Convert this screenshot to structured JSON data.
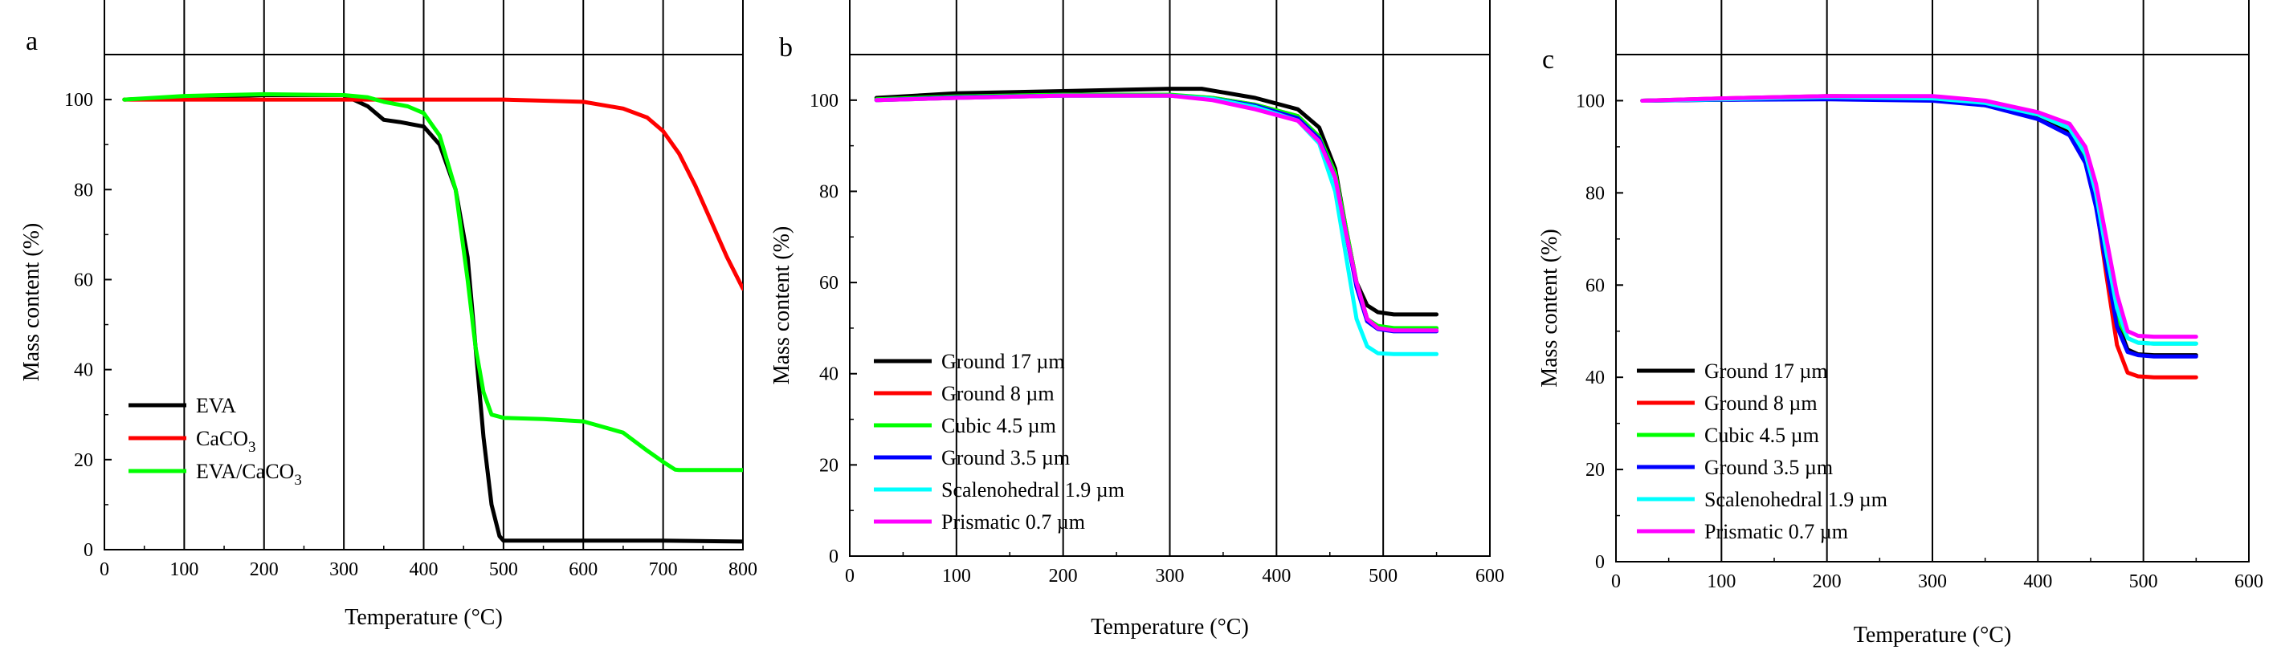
{
  "chart_data": [
    {
      "type": "line",
      "panel": "a",
      "xlabel": "Temperature (°C)",
      "ylabel": "Mass content (%)",
      "xlim": [
        0,
        800
      ],
      "ylim": [
        0,
        110
      ],
      "xticks": [
        0,
        100,
        200,
        300,
        400,
        500,
        600,
        700,
        800
      ],
      "yticks": [
        0,
        20,
        40,
        60,
        80,
        100
      ],
      "legend_position": "bottom-left",
      "series": [
        {
          "name": "EVA",
          "label_main": "EVA",
          "label_sub": "",
          "label_tail": "",
          "color": "#000000",
          "x": [
            25,
            100,
            200,
            300,
            330,
            350,
            370,
            400,
            420,
            440,
            455,
            465,
            475,
            485,
            495,
            500,
            550,
            600,
            700,
            800
          ],
          "y": [
            100,
            100.5,
            101,
            101,
            98.5,
            95.5,
            95,
            94,
            90,
            80,
            65,
            45,
            25,
            10,
            3,
            2,
            2,
            2,
            2,
            1.8
          ]
        },
        {
          "name": "CaCO3",
          "label_main": "CaCO",
          "label_sub": "3",
          "label_tail": "",
          "color": "#ff0000",
          "x": [
            25,
            100,
            300,
            500,
            600,
            650,
            680,
            700,
            720,
            740,
            760,
            780,
            800
          ],
          "y": [
            100,
            100,
            100,
            100,
            99.5,
            98,
            96,
            93,
            88,
            81,
            73,
            65,
            58
          ]
        },
        {
          "name": "EVA/CaCO3",
          "label_main": "EVA/CaCO",
          "label_sub": "3",
          "label_tail": "",
          "color": "#00ff00",
          "x": [
            25,
            100,
            200,
            300,
            330,
            350,
            380,
            400,
            420,
            440,
            455,
            465,
            475,
            485,
            500,
            550,
            600,
            650,
            680,
            700,
            715,
            720,
            800
          ],
          "y": [
            100,
            100.8,
            101.2,
            101,
            100.5,
            99.5,
            98.5,
            97,
            92,
            80,
            60,
            45,
            35,
            30,
            29.3,
            29,
            28.5,
            26,
            22,
            19.5,
            17.8,
            17.7,
            17.7
          ]
        }
      ]
    },
    {
      "type": "line",
      "panel": "b",
      "xlabel": "Temperature (°C)",
      "ylabel": "Mass content (%)",
      "xlim": [
        0,
        600
      ],
      "ylim": [
        0,
        110
      ],
      "xticks": [
        0,
        100,
        200,
        300,
        400,
        500,
        600
      ],
      "yticks": [
        0,
        20,
        40,
        60,
        80,
        100
      ],
      "legend_position": "bottom-left",
      "series": [
        {
          "name": "Ground 17 µm",
          "label_main": "Ground 17 µm",
          "label_sub": "",
          "label_tail": "",
          "color": "#000000",
          "x": [
            25,
            100,
            200,
            300,
            330,
            380,
            420,
            440,
            455,
            465,
            475,
            485,
            495,
            510,
            550
          ],
          "y": [
            100.5,
            101.5,
            102,
            102.5,
            102.5,
            100.5,
            98,
            94,
            85,
            72,
            60,
            55,
            53.5,
            53,
            53
          ]
        },
        {
          "name": "Ground 8 µm",
          "label_main": "Ground 8 µm",
          "label_sub": "",
          "label_tail": "",
          "color": "#ff0000",
          "x": [
            25,
            100,
            200,
            300,
            340,
            380,
            420,
            440,
            455,
            465,
            475,
            485,
            495,
            510,
            550
          ],
          "y": [
            100,
            100.5,
            101,
            101,
            100.5,
            99,
            96.5,
            92,
            84,
            72,
            60,
            52,
            50,
            49.5,
            49.5
          ]
        },
        {
          "name": "Cubic 4.5 µm",
          "label_main": "Cubic 4.5 µm",
          "label_sub": "",
          "label_tail": "",
          "color": "#00ff00",
          "x": [
            25,
            100,
            200,
            300,
            340,
            380,
            420,
            440,
            455,
            465,
            475,
            485,
            495,
            510,
            550
          ],
          "y": [
            100.2,
            100.8,
            101.2,
            101.2,
            100.5,
            99,
            96.5,
            92,
            84,
            72,
            60,
            52,
            50.5,
            50,
            50
          ]
        },
        {
          "name": "Ground 3.5 µm",
          "label_main": "Ground 3.5 µm",
          "label_sub": "",
          "label_tail": "",
          "color": "#0000ff",
          "x": [
            25,
            100,
            200,
            300,
            340,
            380,
            420,
            440,
            455,
            465,
            475,
            485,
            495,
            510,
            550
          ],
          "y": [
            100,
            100.6,
            101,
            101,
            100.3,
            98.8,
            96,
            91.5,
            83,
            71,
            59,
            51.5,
            49.8,
            49.3,
            49.3
          ]
        },
        {
          "name": "Scalenohedral 1.9 µm",
          "label_main": "Scalenohedral 1.9 µm",
          "label_sub": "",
          "label_tail": "",
          "color": "#00ffff",
          "x": [
            25,
            100,
            200,
            300,
            340,
            380,
            420,
            440,
            455,
            465,
            475,
            485,
            495,
            510,
            550
          ],
          "y": [
            100,
            100.5,
            101,
            101,
            100.3,
            98.5,
            95.5,
            90.5,
            80,
            66,
            52,
            46,
            44.5,
            44.3,
            44.3
          ]
        },
        {
          "name": "Prismatic 0.7 µm",
          "label_main": "Prismatic 0.7 µm",
          "label_sub": "",
          "label_tail": "",
          "color": "#ff00ff",
          "x": [
            25,
            100,
            200,
            300,
            340,
            380,
            420,
            440,
            455,
            465,
            475,
            485,
            495,
            510,
            550
          ],
          "y": [
            100,
            100.5,
            101,
            101,
            100,
            98,
            95.5,
            91,
            83,
            71,
            60,
            52,
            50,
            49.5,
            49.5
          ]
        }
      ]
    },
    {
      "type": "line",
      "panel": "c",
      "xlabel": "Temperature (°C)",
      "ylabel": "Mass content (%)",
      "xlim": [
        0,
        600
      ],
      "ylim": [
        0,
        110
      ],
      "xticks": [
        0,
        100,
        200,
        300,
        400,
        500,
        600
      ],
      "yticks": [
        0,
        20,
        40,
        60,
        80,
        100
      ],
      "legend_position": "bottom-left",
      "series": [
        {
          "name": "Ground 17 µm",
          "label_main": "Ground 17 µm",
          "label_sub": "",
          "label_tail": "",
          "color": "#000000",
          "x": [
            25,
            100,
            200,
            300,
            350,
            400,
            430,
            445,
            455,
            465,
            475,
            485,
            495,
            510,
            550
          ],
          "y": [
            100,
            100.2,
            100.5,
            100.2,
            99,
            96.5,
            93,
            87,
            78,
            65,
            52,
            46,
            45,
            44.8,
            44.8
          ]
        },
        {
          "name": "Ground 8 µm",
          "label_main": "Ground 8 µm",
          "label_sub": "",
          "label_tail": "",
          "color": "#ff0000",
          "x": [
            25,
            100,
            200,
            300,
            350,
            400,
            430,
            445,
            455,
            465,
            475,
            485,
            495,
            510,
            550
          ],
          "y": [
            100,
            100.5,
            101,
            100.8,
            99.5,
            97,
            94,
            88,
            78,
            62,
            47,
            41,
            40.2,
            40,
            40
          ]
        },
        {
          "name": "Cubic 4.5 µm",
          "label_main": "Cubic 4.5 µm",
          "label_sub": "",
          "label_tail": "",
          "color": "#00ff00",
          "x": [
            25,
            100,
            200,
            300,
            350,
            400,
            430,
            445,
            455,
            465,
            475,
            485,
            495,
            510,
            550
          ],
          "y": [
            100,
            100.3,
            100.8,
            100.6,
            99.5,
            97,
            94,
            88,
            79,
            66,
            53,
            48.5,
            47.5,
            47.3,
            47.3
          ]
        },
        {
          "name": "Ground 3.5 µm",
          "label_main": "Ground 3.5 µm",
          "label_sub": "",
          "label_tail": "",
          "color": "#0000ff",
          "x": [
            25,
            100,
            200,
            300,
            350,
            400,
            430,
            445,
            455,
            465,
            475,
            485,
            495,
            510,
            550
          ],
          "y": [
            100,
            100.2,
            100.3,
            100,
            99,
            96,
            92.5,
            86.5,
            77,
            64,
            51,
            45.5,
            44.8,
            44.5,
            44.5
          ]
        },
        {
          "name": "Scalenohedral 1.9 µm",
          "label_main": "Scalenohedral 1.9 µm",
          "label_sub": "",
          "label_tail": "",
          "color": "#00ffff",
          "x": [
            25,
            100,
            200,
            300,
            350,
            400,
            430,
            445,
            455,
            465,
            475,
            485,
            495,
            510,
            550
          ],
          "y": [
            100,
            100.3,
            100.8,
            100.5,
            99.5,
            97,
            94,
            88.5,
            80,
            67,
            55,
            48.5,
            47.5,
            47.3,
            47.3
          ]
        },
        {
          "name": "Prismatic 0.7 µm",
          "label_main": "Prismatic 0.7 µm",
          "label_sub": "",
          "label_tail": "",
          "color": "#ff00ff",
          "x": [
            25,
            100,
            200,
            300,
            350,
            400,
            430,
            445,
            455,
            465,
            475,
            485,
            495,
            510,
            550
          ],
          "y": [
            100,
            100.5,
            101,
            101,
            100,
            97.5,
            95,
            90,
            82,
            70,
            58,
            50,
            49,
            48.8,
            48.8
          ]
        }
      ]
    }
  ]
}
